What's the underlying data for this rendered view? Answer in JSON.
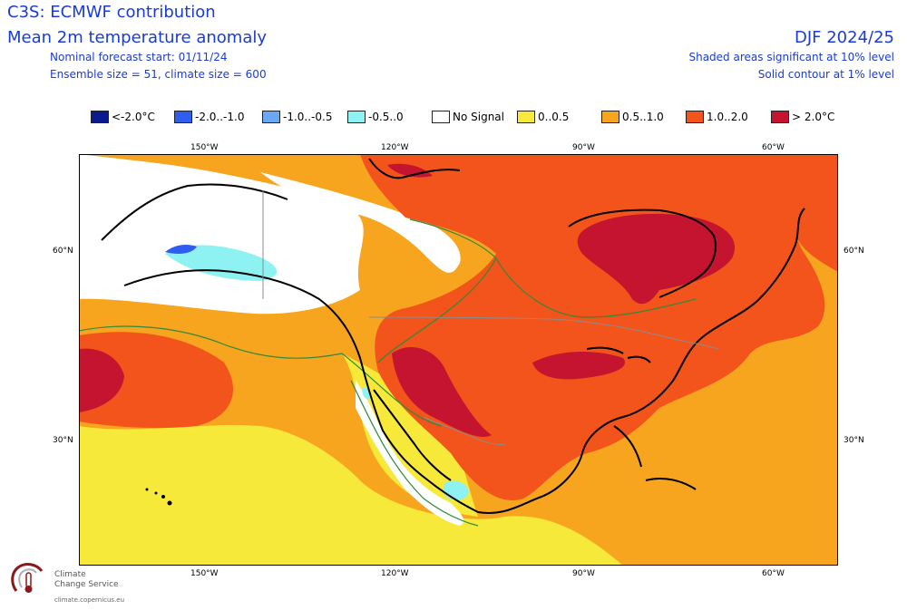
{
  "header": {
    "title_line1": "C3S: ECMWF contribution",
    "title_line2": "Mean 2m temperature anomaly",
    "forecast_start": "Nominal forecast start: 01/11/24",
    "ensemble": "Ensemble size = 51, climate size = 600",
    "season": "DJF 2024/25",
    "significance_note": "Shaded areas significant at 10% level",
    "contour_note": "Solid contour at 1% level"
  },
  "legend": [
    {
      "label": "<-2.0°C",
      "color": "#0a1a8f"
    },
    {
      "label": "-2.0..-1.0",
      "color": "#2f5df0"
    },
    {
      "label": "-1.0..-0.5",
      "color": "#6aa8f2"
    },
    {
      "label": "-0.5..0",
      "color": "#8ef2f2"
    },
    {
      "label": "No Signal",
      "color": "#ffffff"
    },
    {
      "label": "0..0.5",
      "color": "#f6e93a"
    },
    {
      "label": "0.5..1.0",
      "color": "#f7a51e"
    },
    {
      "label": "1.0..2.0",
      "color": "#f2541b"
    },
    {
      "label": "> 2.0°C",
      "color": "#c41430"
    }
  ],
  "axes": {
    "lon_labels": [
      "150°W",
      "120°W",
      "90°W",
      "60°W"
    ],
    "lat_labels": [
      "60°N",
      "30°N"
    ]
  },
  "logo": {
    "name_line1": "Climate",
    "name_line2": "Change Service",
    "url": "climate.copernicus.eu"
  }
}
